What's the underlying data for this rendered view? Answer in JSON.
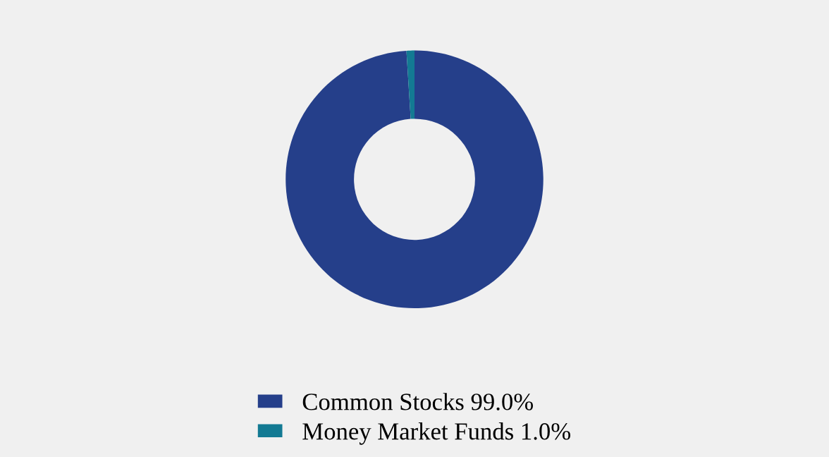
{
  "chart_data": {
    "type": "donut",
    "categories": [
      "Common Stocks",
      "Money Market Funds"
    ],
    "values": [
      99.0,
      1.0
    ],
    "colors": [
      "#253f8a",
      "#137a93"
    ],
    "value_labels": [
      "99.0%",
      "1.0%"
    ],
    "legend": "bottom"
  }
}
